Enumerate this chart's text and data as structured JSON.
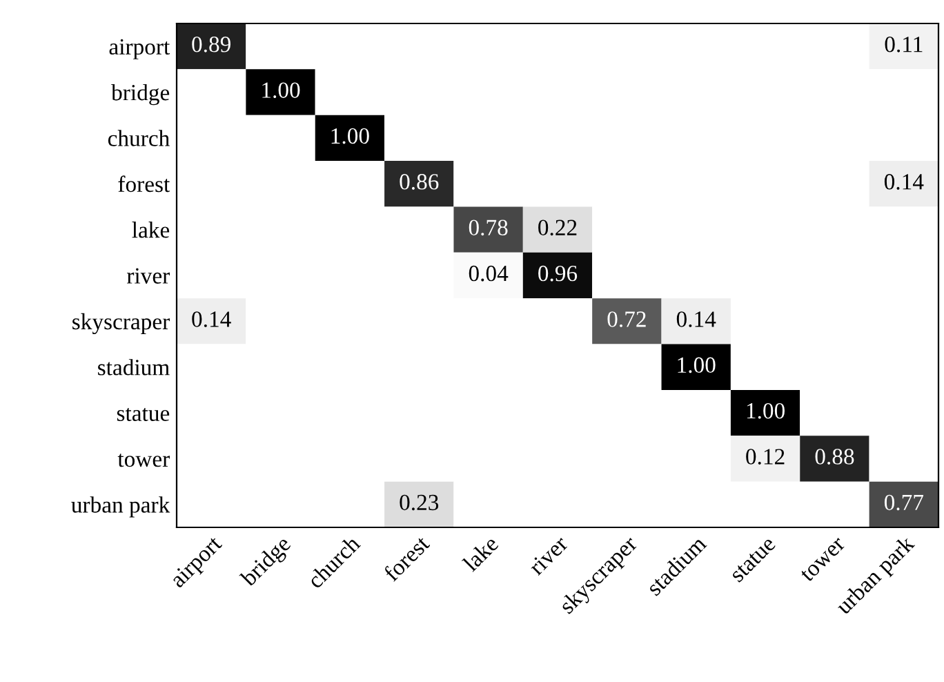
{
  "chart_data": {
    "type": "heatmap",
    "categories": [
      "airport",
      "bridge",
      "church",
      "forest",
      "lake",
      "river",
      "skyscraper",
      "stadium",
      "statue",
      "tower",
      "urban park"
    ],
    "y_categories": [
      "airport",
      "bridge",
      "church",
      "forest",
      "lake",
      "river",
      "skyscraper",
      "stadium",
      "statue",
      "tower",
      "urban park"
    ],
    "cells": [
      [
        0.89,
        null,
        null,
        null,
        null,
        null,
        null,
        null,
        null,
        null,
        0.11
      ],
      [
        null,
        1.0,
        null,
        null,
        null,
        null,
        null,
        null,
        null,
        null,
        null
      ],
      [
        null,
        null,
        1.0,
        null,
        null,
        null,
        null,
        null,
        null,
        null,
        null
      ],
      [
        null,
        null,
        null,
        0.86,
        null,
        null,
        null,
        null,
        null,
        null,
        0.14
      ],
      [
        null,
        null,
        null,
        null,
        0.78,
        0.22,
        null,
        null,
        null,
        null,
        null
      ],
      [
        null,
        null,
        null,
        null,
        0.04,
        0.96,
        null,
        null,
        null,
        null,
        null
      ],
      [
        0.14,
        null,
        null,
        null,
        null,
        null,
        0.72,
        0.14,
        null,
        null,
        null
      ],
      [
        null,
        null,
        null,
        null,
        null,
        null,
        null,
        1.0,
        null,
        null,
        null
      ],
      [
        null,
        null,
        null,
        null,
        null,
        null,
        null,
        null,
        1.0,
        null,
        null
      ],
      [
        null,
        null,
        null,
        null,
        null,
        null,
        null,
        null,
        0.12,
        0.88,
        null
      ],
      [
        null,
        null,
        null,
        0.23,
        null,
        null,
        null,
        null,
        null,
        null,
        0.77
      ]
    ],
    "cell_labels": [
      [
        "0.89",
        null,
        null,
        null,
        null,
        null,
        null,
        null,
        null,
        null,
        "0.11"
      ],
      [
        null,
        "1.00",
        null,
        null,
        null,
        null,
        null,
        null,
        null,
        null,
        null
      ],
      [
        null,
        null,
        "1.00",
        null,
        null,
        null,
        null,
        null,
        null,
        null,
        null
      ],
      [
        null,
        null,
        null,
        "0.86",
        null,
        null,
        null,
        null,
        null,
        null,
        "0.14"
      ],
      [
        null,
        null,
        null,
        null,
        "0.78",
        "0.22",
        null,
        null,
        null,
        null,
        null
      ],
      [
        null,
        null,
        null,
        null,
        "0.04",
        "0.96",
        null,
        null,
        null,
        null,
        null
      ],
      [
        "0.14",
        null,
        null,
        null,
        null,
        null,
        "0.72",
        "0.14",
        null,
        null,
        null
      ],
      [
        null,
        null,
        null,
        null,
        null,
        null,
        null,
        "1.00",
        null,
        null,
        null
      ],
      [
        null,
        null,
        null,
        null,
        null,
        null,
        null,
        null,
        "1.00",
        null,
        null
      ],
      [
        null,
        null,
        null,
        null,
        null,
        null,
        null,
        null,
        "0.12",
        "0.88",
        null
      ],
      [
        null,
        null,
        null,
        "0.23",
        null,
        null,
        null,
        null,
        null,
        null,
        "0.77"
      ]
    ]
  }
}
